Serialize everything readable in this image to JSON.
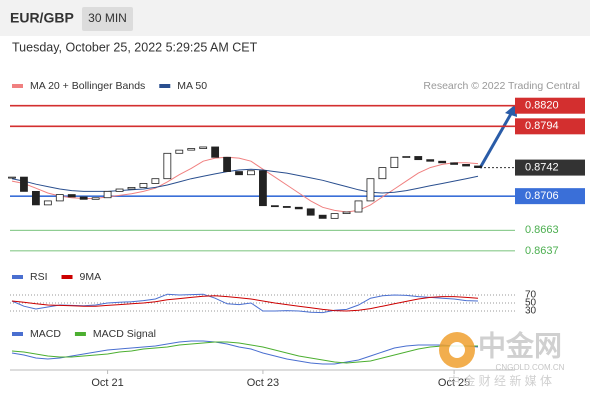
{
  "header": {
    "symbol": "EUR/GBP",
    "interval": "30 MIN",
    "datetime": "Tuesday, October 25, 2022 5:29:25 AM CET"
  },
  "chart_data": [
    {
      "type": "candlestick",
      "annotation": "Research © 2022 Trading Central",
      "categories": [
        null,
        null,
        null,
        null,
        null,
        null,
        null,
        null,
        "Oct 21",
        null,
        null,
        null,
        null,
        null,
        null,
        null,
        null,
        null,
        null,
        null,
        null,
        "Oct 23",
        null,
        null,
        null,
        null,
        null,
        null,
        null,
        null,
        null,
        null,
        null,
        null,
        null,
        null,
        null,
        "Oct 25",
        null,
        null
      ],
      "close": [
        0.873,
        0.8712,
        0.8695,
        0.87,
        0.8708,
        0.8705,
        0.8702,
        0.8704,
        0.8712,
        0.8715,
        0.8717,
        0.8722,
        0.8728,
        0.876,
        0.8764,
        0.8766,
        0.8768,
        0.8755,
        0.8737,
        0.8733,
        0.8738,
        0.8694,
        0.8693,
        0.8692,
        0.869,
        0.8682,
        0.8678,
        0.8684,
        0.8686,
        0.87,
        0.8728,
        0.8742,
        0.8755,
        0.8756,
        0.8752,
        0.875,
        0.8748,
        0.8746,
        0.8744,
        0.8742
      ],
      "series": [
        {
          "name": "MA 20 + Bollinger Bands",
          "color": "#f08080",
          "values": [
            0.8725,
            0.8722,
            0.8716,
            0.871,
            0.8706,
            0.8704,
            0.8703,
            0.8703,
            0.8705,
            0.8707,
            0.8709,
            0.8712,
            0.8716,
            0.8724,
            0.8733,
            0.8741,
            0.875,
            0.8754,
            0.8755,
            0.8754,
            0.875,
            0.874,
            0.873,
            0.872,
            0.871,
            0.87,
            0.8692,
            0.8688,
            0.8686,
            0.8688,
            0.8695,
            0.8705,
            0.8715,
            0.8725,
            0.8735,
            0.8742,
            0.8746,
            0.8748,
            0.8748,
            0.8747
          ]
        },
        {
          "name": "MA 50",
          "color": "#2a4f8f",
          "values": [
            0.8728,
            0.8725,
            0.8721,
            0.8718,
            0.8715,
            0.8713,
            0.8712,
            0.8712,
            0.8712,
            0.8713,
            0.8714,
            0.8715,
            0.8717,
            0.872,
            0.8724,
            0.8728,
            0.8731,
            0.8734,
            0.8737,
            0.8739,
            0.874,
            0.8739,
            0.8737,
            0.8735,
            0.8732,
            0.8729,
            0.8726,
            0.8722,
            0.8718,
            0.8714,
            0.8711,
            0.871,
            0.8711,
            0.8713,
            0.8716,
            0.8719,
            0.8722,
            0.8725,
            0.8728,
            0.8731
          ]
        }
      ],
      "ylim": [
        0.8623,
        0.8865
      ],
      "levels": [
        {
          "value": 0.882,
          "label": "0.8820",
          "color": "#d32f2f",
          "style": "solid",
          "boxed": true
        },
        {
          "value": 0.8794,
          "label": "0.8794",
          "color": "#d32f2f",
          "style": "solid",
          "boxed": true
        },
        {
          "value": 0.8742,
          "label": "0.8742",
          "color": "#333333",
          "style": "dotted",
          "boxed": true
        },
        {
          "value": 0.8706,
          "label": "0.8706",
          "color": "#3a6fd8",
          "style": "solid",
          "boxed": true
        },
        {
          "value": 0.8663,
          "label": "0.8663",
          "color": "#4caf50",
          "style": "solid",
          "boxed": false
        },
        {
          "value": 0.8637,
          "label": "0.8637",
          "color": "#4caf50",
          "style": "solid",
          "boxed": false
        }
      ]
    },
    {
      "type": "line",
      "series": [
        {
          "name": "RSI",
          "color": "#4a6fd0",
          "values": [
            55,
            42,
            35,
            40,
            45,
            44,
            43,
            45,
            50,
            52,
            53,
            56,
            60,
            72,
            70,
            71,
            72,
            62,
            48,
            46,
            50,
            30,
            30,
            31,
            30,
            27,
            26,
            32,
            34,
            45,
            62,
            68,
            70,
            69,
            66,
            64,
            62,
            60,
            56,
            55
          ]
        },
        {
          "name": "9MA",
          "color": "#cc0000",
          "values": [
            55,
            52,
            48,
            45,
            44,
            43,
            42,
            42,
            44,
            46,
            48,
            50,
            53,
            58,
            61,
            64,
            67,
            68,
            66,
            63,
            60,
            55,
            50,
            46,
            42,
            38,
            34,
            31,
            30,
            32,
            36,
            42,
            48,
            54,
            60,
            64,
            66,
            66,
            64,
            62
          ]
        }
      ],
      "ylim": [
        20,
        82.5
      ],
      "yticks": [
        70,
        50,
        30
      ]
    },
    {
      "type": "line",
      "series": [
        {
          "name": "MACD",
          "color": "#4a6fd0",
          "values": [
            -0.0003,
            -0.0005,
            -0.0008,
            -0.0009,
            -0.0008,
            -0.0006,
            -0.0004,
            -0.0002,
            0,
            0.0001,
            0.0002,
            0.0003,
            0.0004,
            0.0006,
            0.0008,
            0.0009,
            0.0009,
            0.0008,
            0.0006,
            0.0003,
            0.0001,
            -0.0003,
            -0.0006,
            -0.0009,
            -0.0011,
            -0.0013,
            -0.0014,
            -0.0014,
            -0.0012,
            -0.001,
            -0.0006,
            -0.0002,
            0.0002,
            0.0004,
            0.0005,
            0.0005,
            0.0005,
            0.0004,
            0.0004,
            0.0003
          ]
        },
        {
          "name": "MACD Signal",
          "color": "#4caf30",
          "values": [
            -0.0001,
            -0.0002,
            -0.0004,
            -0.0006,
            -0.0007,
            -0.0007,
            -0.0006,
            -0.0005,
            -0.0004,
            -0.0002,
            -0.0001,
            0.0001,
            0.0002,
            0.0003,
            0.0005,
            0.0006,
            0.0007,
            0.0008,
            0.0008,
            0.0007,
            0.0005,
            0.0003,
            0,
            -0.0003,
            -0.0006,
            -0.0008,
            -0.001,
            -0.0012,
            -0.0013,
            -0.0012,
            -0.0011,
            -0.0008,
            -0.0005,
            -0.0002,
            0.0001,
            0.0003,
            0.0004,
            0.0004,
            0.0004,
            0.0004
          ]
        }
      ],
      "ylim": [
        -0.002,
        0.002
      ]
    }
  ],
  "watermark": {
    "name": "中金网",
    "url": "CNGOLD.COM.CN",
    "tagline": "中 金 财 经 新 媒 体"
  }
}
